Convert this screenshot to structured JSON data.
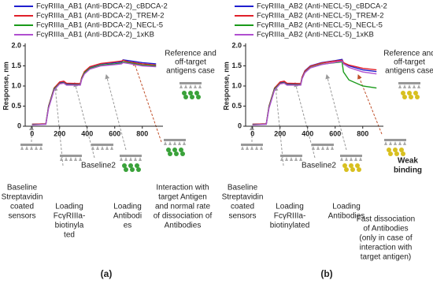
{
  "chart_data": [
    {
      "type": "line",
      "panel_label": "(a)",
      "y_label": "Response, nm",
      "xlim": [
        -50,
        950
      ],
      "xticks": [
        0,
        200,
        400,
        600,
        800
      ],
      "ylim": [
        0,
        2.0
      ],
      "yticks": [
        0,
        0.5,
        {
          "value": 1.0,
          "label": "1.0"
        },
        1.5,
        {
          "value": 2.0,
          "label": "2.0"
        }
      ],
      "x": [
        0,
        100,
        120,
        160,
        200,
        230,
        250,
        350,
        360,
        380,
        420,
        500,
        600,
        650,
        660,
        700,
        800,
        900
      ],
      "series": [
        {
          "name": "FcγRIIIa_AB1 (Anti-BDCA-2)_cBDCA-2",
          "color": "#1f1fcf",
          "values": [
            0.05,
            0.06,
            0.5,
            0.95,
            1.08,
            1.1,
            1.05,
            1.05,
            1.2,
            1.35,
            1.47,
            1.55,
            1.58,
            1.6,
            1.65,
            1.63,
            1.58,
            1.55
          ]
        },
        {
          "name": "FcγRIIIa_AB1 (Anti-BDCA-2)_TREM-2",
          "color": "#e0202a",
          "values": [
            0.05,
            0.06,
            0.5,
            0.95,
            1.1,
            1.12,
            1.07,
            1.06,
            1.21,
            1.36,
            1.48,
            1.56,
            1.6,
            1.62,
            1.64,
            1.6,
            1.55,
            1.52
          ]
        },
        {
          "name": "FcγRIIIa_AB1 (Anti-BDCA-2)_NECL-5",
          "color": "#1a9a1a",
          "values": [
            0.04,
            0.05,
            0.48,
            0.93,
            1.06,
            1.08,
            1.03,
            1.03,
            1.18,
            1.33,
            1.44,
            1.52,
            1.55,
            1.57,
            1.6,
            1.58,
            1.52,
            1.5
          ]
        },
        {
          "name": "FcγRIIIa_AB1 (Anti-BDCA-2)_1xKB",
          "color": "#b04fd0",
          "values": [
            0.03,
            0.05,
            0.45,
            0.9,
            1.05,
            1.07,
            1.02,
            1.02,
            1.16,
            1.3,
            1.42,
            1.5,
            1.53,
            1.55,
            1.58,
            1.56,
            1.5,
            1.48
          ]
        }
      ],
      "note": [
        "Reference and",
        "off-target",
        "antigens case"
      ],
      "stages": [
        {
          "lines": [
            "Baseline",
            "Streptavidin",
            "coated",
            "sensors"
          ]
        },
        {
          "lines": [
            "Loading",
            "FcγRIIIa-",
            "biotinyla",
            "ted"
          ]
        },
        {
          "lines": [
            "Baseline2"
          ]
        },
        {
          "lines": [
            "Loading",
            "Antibodi",
            "es"
          ]
        },
        {
          "lines": [
            "Interaction with",
            "target Antigen",
            "and normal rate",
            "of dissociation of",
            "Antibodies"
          ]
        }
      ]
    },
    {
      "type": "line",
      "panel_label": "(b)",
      "y_label": "Response, nm",
      "xlim": [
        -50,
        950
      ],
      "xticks": [
        0,
        200,
        400,
        600,
        800
      ],
      "ylim": [
        0,
        2.0
      ],
      "yticks": [
        0,
        0.5,
        {
          "value": 1.0,
          "label": "1.0"
        },
        1.5,
        {
          "value": 2.0,
          "label": "2.0"
        }
      ],
      "x": [
        0,
        100,
        120,
        160,
        200,
        230,
        250,
        350,
        360,
        380,
        420,
        500,
        600,
        650,
        660,
        700,
        800,
        900
      ],
      "series": [
        {
          "name": "FcγRIIIa_AB2 (Anti-NECL-5)_cBDCA-2",
          "color": "#1f1fcf",
          "values": [
            0.05,
            0.06,
            0.5,
            0.95,
            1.08,
            1.1,
            1.05,
            1.05,
            1.22,
            1.38,
            1.5,
            1.58,
            1.63,
            1.66,
            1.58,
            1.5,
            1.4,
            1.36
          ]
        },
        {
          "name": "FcγRIIIa_AB2 (Anti-NECL-5)_TREM-2",
          "color": "#e0202a",
          "values": [
            0.05,
            0.06,
            0.5,
            0.95,
            1.1,
            1.12,
            1.07,
            1.06,
            1.22,
            1.37,
            1.49,
            1.57,
            1.62,
            1.64,
            1.58,
            1.52,
            1.44,
            1.4
          ]
        },
        {
          "name": "FcγRIIIa_AB2 (Anti-NECL-5)_NECL-5",
          "color": "#1a9a1a",
          "values": [
            0.04,
            0.05,
            0.48,
            0.93,
            1.06,
            1.08,
            1.03,
            1.03,
            1.19,
            1.34,
            1.46,
            1.54,
            1.58,
            1.6,
            1.35,
            1.15,
            1.0,
            0.95
          ]
        },
        {
          "name": "FcγRIIIa_AB2 (Anti-NECL-5)_1xKB",
          "color": "#b04fd0",
          "values": [
            0.03,
            0.05,
            0.45,
            0.9,
            1.05,
            1.07,
            1.02,
            1.02,
            1.18,
            1.33,
            1.45,
            1.53,
            1.59,
            1.62,
            1.55,
            1.46,
            1.35,
            1.3
          ]
        }
      ],
      "note": [
        "Reference and",
        "off-target",
        "antigens case"
      ],
      "stages": [
        {
          "lines": [
            "Baseline",
            "Streptavidin",
            "coated",
            "sensors"
          ]
        },
        {
          "lines": [
            "Loading",
            "FcγRIIIa-",
            "biotinylated"
          ]
        },
        {
          "lines": [
            "Baseline2"
          ]
        },
        {
          "lines": [
            "Loading",
            "Antibodies"
          ]
        },
        {
          "lines": [
            "Weak",
            "binding"
          ]
        },
        {
          "lines": [
            "Fast dissociation",
            "of Antibodies",
            "(only in case of",
            "interaction with",
            "target antigen)"
          ]
        }
      ]
    }
  ]
}
